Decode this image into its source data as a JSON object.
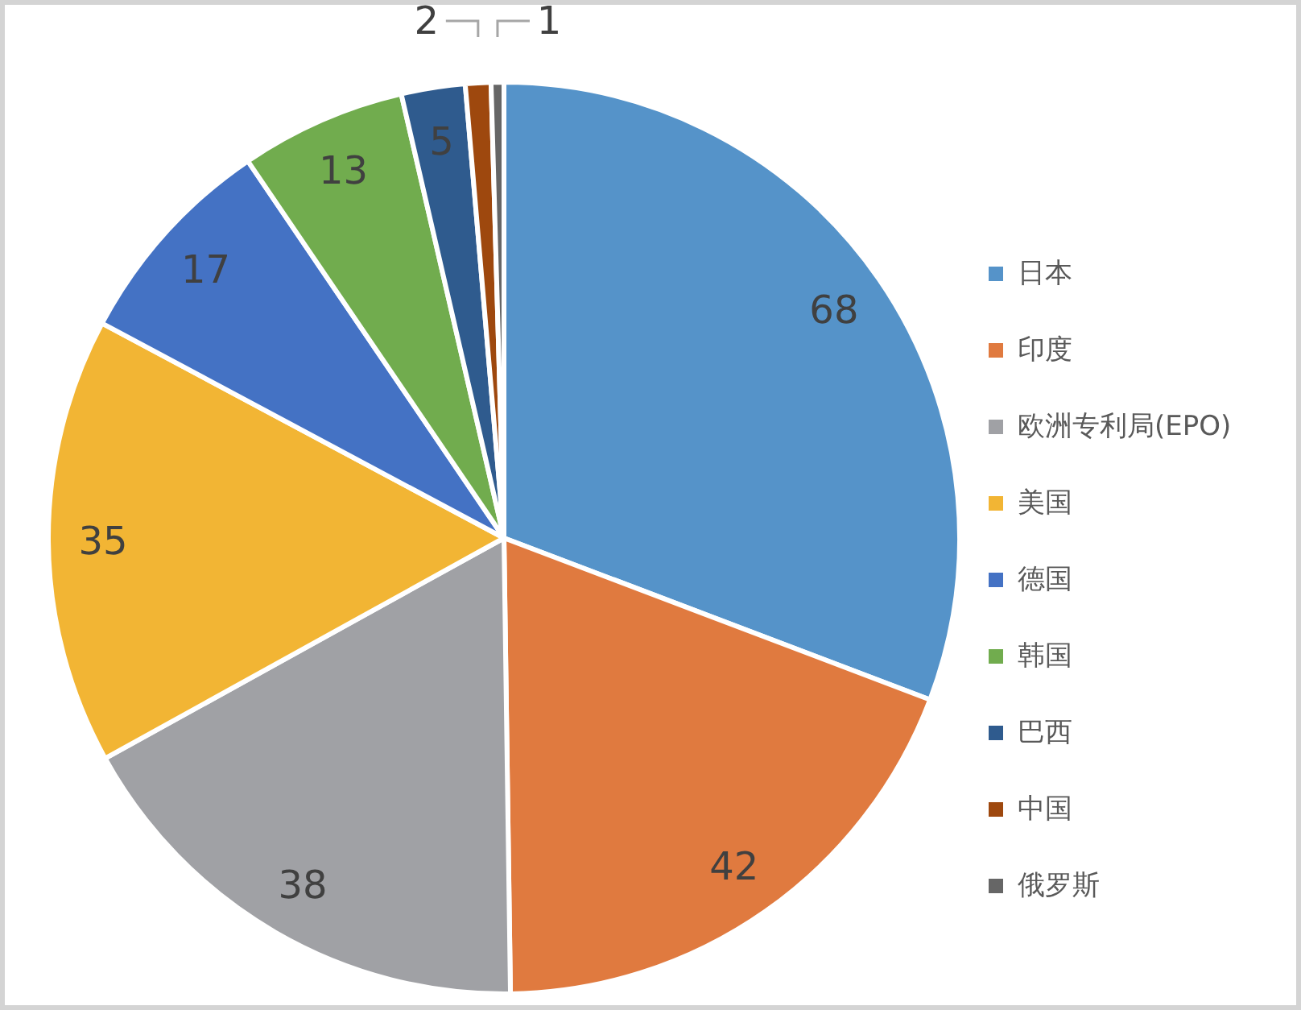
{
  "chart_data": {
    "type": "pie",
    "categories": [
      "日本",
      "印度",
      "欧洲专利局(EPO)",
      "美国",
      "德国",
      "韩国",
      "巴西",
      "中国",
      "俄罗斯"
    ],
    "values": [
      68,
      42,
      38,
      35,
      17,
      13,
      5,
      2,
      1
    ],
    "colors": [
      "#5593c9",
      "#e07a3f",
      "#a0a1a5",
      "#f2b534",
      "#4472c4",
      "#71ac4e",
      "#2f5b8e",
      "#9e480e",
      "#666666"
    ],
    "data_labels": true,
    "legend": "right"
  }
}
